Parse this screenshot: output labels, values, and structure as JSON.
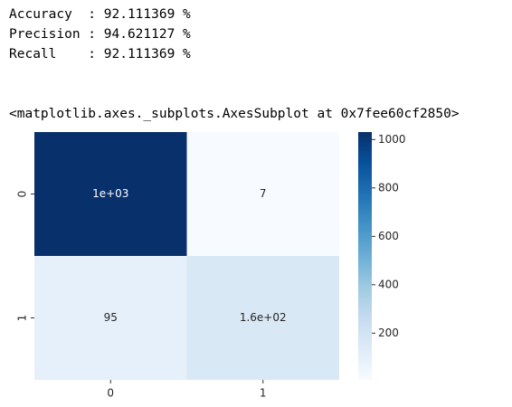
{
  "output": {
    "lines": [
      "Accuracy  : 92.111369 %",
      "Precision : 94.621127 %",
      "Recall    : 92.111369 %"
    ],
    "repr": "<matplotlib.axes._subplots.AxesSubplot at 0x7fee60cf2850>"
  },
  "chart_data": {
    "type": "heatmap",
    "x_categories": [
      "0",
      "1"
    ],
    "y_categories": [
      "0",
      "1"
    ],
    "values": [
      [
        1031,
        7
      ],
      [
        95,
        160
      ]
    ],
    "value_labels": [
      [
        "1e+03",
        "7"
      ],
      [
        "95",
        "1.6e+02"
      ]
    ],
    "colormap": [
      "#f7fbff",
      "#deebf7",
      "#c6dbef",
      "#9ecae1",
      "#6baed6",
      "#4292c6",
      "#2171b5",
      "#08519c",
      "#08306b"
    ],
    "colorbar_lim": [
      7,
      1031
    ],
    "colorbar_ticks": [
      200,
      400,
      600,
      800,
      1000
    ]
  }
}
